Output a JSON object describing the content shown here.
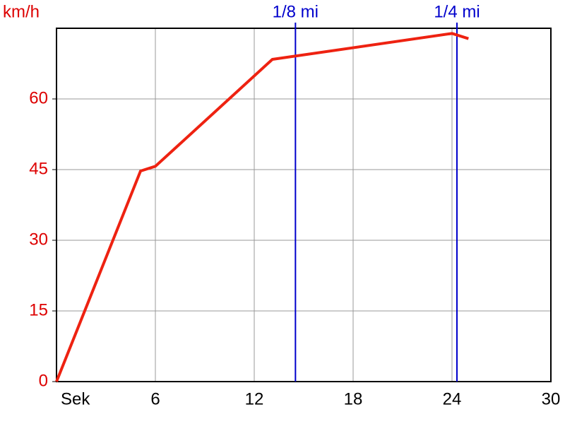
{
  "chart_data": {
    "type": "line",
    "y_label": "km/h",
    "x": [
      0,
      5.1,
      6.0,
      13.1,
      24.0,
      25.0
    ],
    "series": [
      {
        "color": "#ee2211",
        "values": [
          0,
          44.7,
          45.7,
          68.4,
          73.9,
          72.8
        ]
      }
    ],
    "xlim": [
      0,
      30
    ],
    "xticks": [
      {
        "value": 0,
        "label": "Sek"
      },
      6,
      12,
      18,
      24,
      30
    ],
    "ylim": [
      0,
      75
    ],
    "yticks": [
      0,
      15,
      30,
      45,
      60
    ],
    "grid": true,
    "markers": [
      {
        "label": "1/8 mi",
        "x": 14.5,
        "color": "#0000cc"
      },
      {
        "label": "1/4 mi",
        "x": 24.3,
        "color": "#0000cc"
      }
    ]
  }
}
